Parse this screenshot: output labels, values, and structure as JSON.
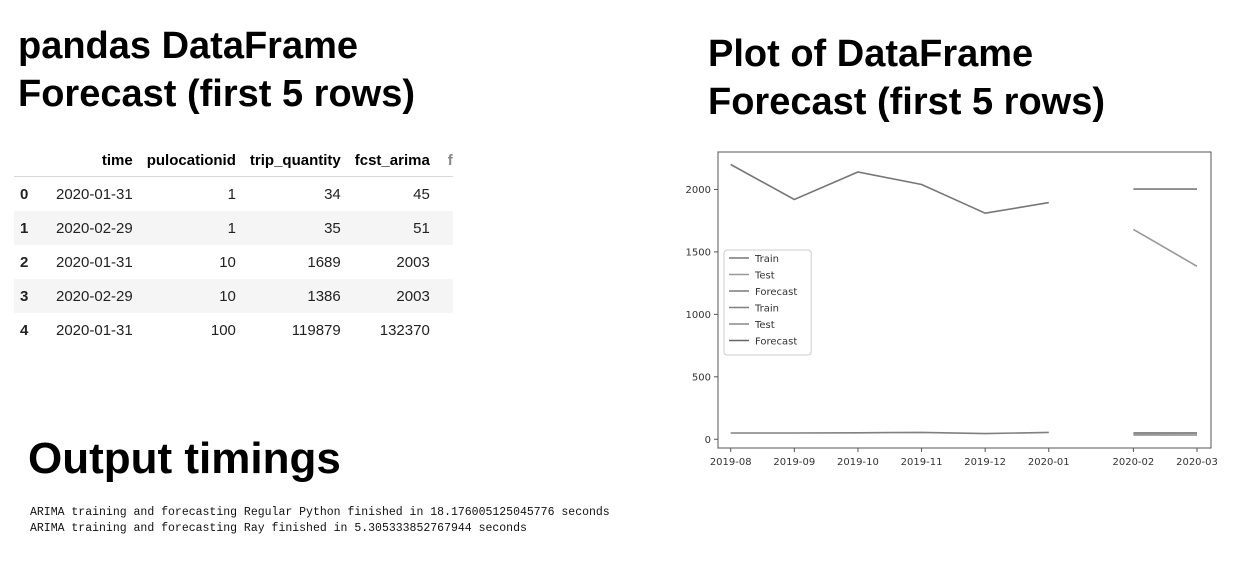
{
  "headings": {
    "left_line1": "pandas DataFrame",
    "left_line2": "Forecast (first 5 rows)",
    "right_line1": "Plot of DataFrame",
    "right_line2": "Forecast (first 5 rows)",
    "timings": "Output timings"
  },
  "table": {
    "columns": [
      "",
      "time",
      "pulocationid",
      "trip_quantity",
      "fcst_arima",
      "f"
    ],
    "rows": [
      [
        "0",
        "2020-01-31",
        "1",
        "34",
        "45"
      ],
      [
        "1",
        "2020-02-29",
        "1",
        "35",
        "51"
      ],
      [
        "2",
        "2020-01-31",
        "10",
        "1689",
        "2003"
      ],
      [
        "3",
        "2020-02-29",
        "10",
        "1386",
        "2003"
      ],
      [
        "4",
        "2020-01-31",
        "100",
        "119879",
        "132370"
      ]
    ]
  },
  "timings": [
    "ARIMA training and forecasting Regular Python finished in 18.176005125045776 seconds",
    "ARIMA training and forecasting Ray finished in 5.305333852767944 seconds"
  ],
  "chart_data": {
    "type": "line",
    "title": "",
    "xlabel": "",
    "ylabel": "",
    "x_tick_labels": [
      "2019-08",
      "2019-09",
      "2019-10",
      "2019-11",
      "2019-12",
      "2020-01",
      "2020-02",
      "2020-03"
    ],
    "x_tick_positions": [
      0,
      1,
      2,
      3,
      4,
      5,
      6.33,
      7.33
    ],
    "xlim": [
      -0.2,
      7.55
    ],
    "y_ticks": [
      0,
      500,
      1000,
      1500,
      2000
    ],
    "ylim": [
      -70,
      2300
    ],
    "grid": false,
    "legend_position": "center-left",
    "legend": [
      "Train",
      "Test",
      "Forecast",
      "Train",
      "Test",
      "Forecast"
    ],
    "series": [
      {
        "name": "Train",
        "color": "#777777",
        "x": [
          0,
          1,
          2,
          3,
          4,
          5
        ],
        "y": [
          2200,
          1920,
          2140,
          2040,
          1810,
          1895
        ]
      },
      {
        "name": "Test",
        "color": "#999999",
        "x": [
          6.33,
          7.33
        ],
        "y": [
          1680,
          1385
        ]
      },
      {
        "name": "Forecast",
        "color": "#7a7a7a",
        "x": [
          6.33,
          7.33
        ],
        "y": [
          2003,
          2003
        ]
      },
      {
        "name": "Train",
        "color": "#808080",
        "x": [
          0,
          1,
          2,
          3,
          4,
          5
        ],
        "y": [
          50,
          50,
          52,
          55,
          45,
          55
        ]
      },
      {
        "name": "Test",
        "color": "#8a8a8a",
        "x": [
          6.33,
          7.33
        ],
        "y": [
          35,
          34
        ]
      },
      {
        "name": "Forecast",
        "color": "#666666",
        "x": [
          6.33,
          7.33
        ],
        "y": [
          50,
          50
        ]
      }
    ]
  }
}
